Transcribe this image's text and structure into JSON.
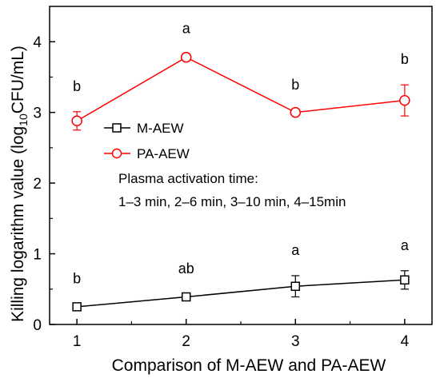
{
  "chart_data": {
    "type": "line",
    "x": [
      1,
      2,
      3,
      4
    ],
    "xticks": [
      "1",
      "2",
      "3",
      "4"
    ],
    "yticks": [
      "0",
      "1",
      "2",
      "3",
      "4"
    ],
    "xlim": [
      0.75,
      4.25
    ],
    "ylim": [
      0,
      4.5
    ],
    "xlabel": "Comparison of M-AEW and PA-AEW",
    "ylabel_main": "Killing logarithm value (log",
    "ylabel_sub": "10",
    "ylabel_end": "CFU/mL)",
    "grid": false,
    "legend_position": "center-left",
    "series": [
      {
        "name": "M-AEW",
        "color": "#000000",
        "marker": "square",
        "values": [
          0.25,
          0.39,
          0.54,
          0.63
        ],
        "errors": [
          0.04,
          0.04,
          0.15,
          0.13
        ],
        "labels": [
          "b",
          "ab",
          "a",
          "a"
        ]
      },
      {
        "name": "PA-AEW",
        "color": "#ff0000",
        "marker": "circle",
        "values": [
          2.88,
          3.78,
          3.0,
          3.17
        ],
        "errors": [
          0.13,
          0.05,
          0.03,
          0.22
        ],
        "labels": [
          "b",
          "a",
          "b",
          "b"
        ]
      }
    ],
    "annotation": {
      "line1": "Plasma activation time:",
      "line2": "1–3 min, 2–6 min, 3–10 min, 4–15min"
    }
  }
}
